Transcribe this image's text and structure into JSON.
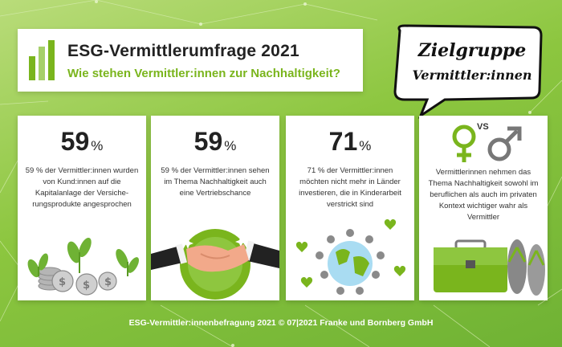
{
  "header": {
    "title": "ESG-Vermittlerumfrage 2021",
    "subtitle": "Wie stehen Vermittler:innen zur Nachhaltigkeit?"
  },
  "bubble": {
    "line1": "Zielgruppe",
    "line2": "Vermittler:innen"
  },
  "cards": [
    {
      "value": "59",
      "unit": "%",
      "text": "59 % der Vermittler:innen wurden von Kund:innen auf die Kapitalanlage der Versiche-rungsprodukte angesprochen",
      "art": "plants-coins-icon"
    },
    {
      "value": "59",
      "unit": "%",
      "text": "59 % der Vermittler:innen sehen im Thema Nachhaltigkeit auch eine Vertriebschance",
      "art": "handshake-icon"
    },
    {
      "value": "71",
      "unit": "%",
      "text": "71 % der Vermittler:innen möchten nicht mehr in Länder investieren, die in Kinderarbeit verstrickt sind",
      "art": "globe-people-icon"
    },
    {
      "value": "",
      "unit": "",
      "text": "Vermittlerinnen nehmen das Thema Nachhaltigkeit sowohl im beruflichen als auch im privaten Kontext wichtiger wahr als Vermittler",
      "art": "female-vs-male-icon",
      "vs": "VS"
    }
  ],
  "footer": "ESG-Vermittler:innenbefragung 2021 © 07|2021 Franke und Bornberg GmbH",
  "colors": {
    "accent_green": "#7ab51d",
    "background_green": "#8cc63f",
    "text_dark": "#222222"
  }
}
